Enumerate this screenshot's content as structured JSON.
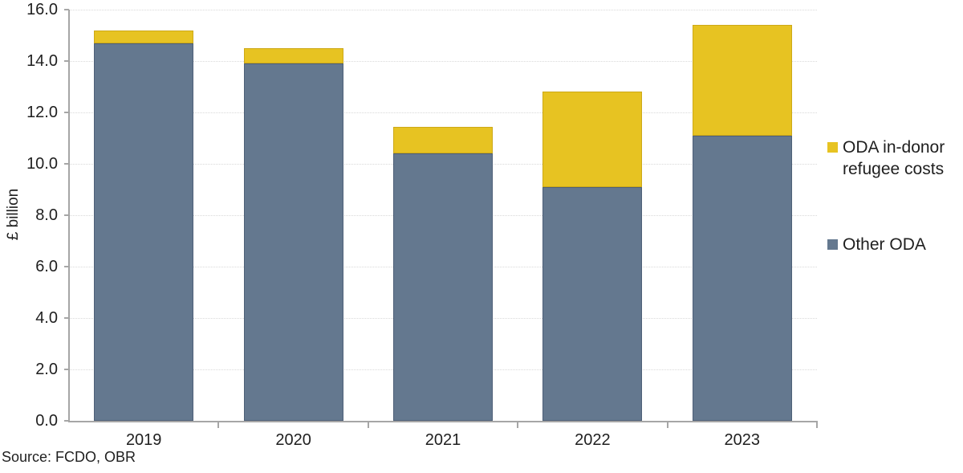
{
  "chart_data": {
    "type": "bar",
    "stacked": true,
    "title": "",
    "categories": [
      "2019",
      "2020",
      "2021",
      "2022",
      "2023"
    ],
    "series": [
      {
        "name": "Other ODA",
        "color": "#64788F",
        "border_color": "#4E6078",
        "values": [
          14.7,
          13.9,
          10.4,
          9.1,
          11.1
        ]
      },
      {
        "name": "ODA in-donor refugee costs",
        "color": "#E7C322",
        "border_color": "#CDA918",
        "values": [
          0.5,
          0.6,
          1.05,
          3.7,
          4.3
        ]
      }
    ],
    "totals": [
      15.2,
      14.5,
      11.45,
      12.8,
      15.4
    ],
    "xlabel": "",
    "ylabel": "£ billion",
    "ylim": [
      0,
      16
    ],
    "ytick_labels": [
      "0.0",
      "2.0",
      "4.0",
      "6.0",
      "8.0",
      "10.0",
      "12.0",
      "14.0",
      "16.0"
    ],
    "grid": "horizontal-dotted",
    "legend_position": "right"
  },
  "legend": {
    "items": [
      {
        "label": "ODA in-donor refugee costs",
        "lines": [
          "ODA in-donor",
          "refugee costs"
        ],
        "color": "#E7C322"
      },
      {
        "label": "Other ODA",
        "lines": [
          "Other ODA"
        ],
        "color": "#64788F"
      }
    ]
  },
  "source_note": "Source: FCDO, OBR",
  "colors": {
    "axis": "#A6A6A6",
    "gridline": "#D9D9D9",
    "text": "#1F1F1F",
    "background": "#FFFFFF"
  }
}
